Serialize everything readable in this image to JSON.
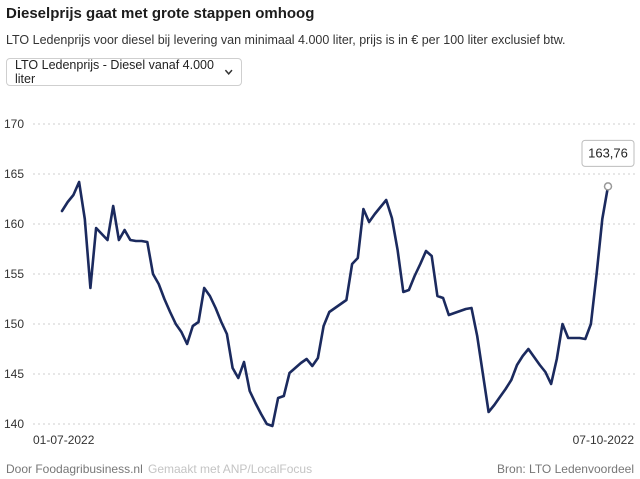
{
  "title": "Dieselprijs gaat met grote stappen omhoog",
  "subtitle": "LTO Ledenprijs voor diesel bij levering van minimaal 4.000 liter, prijs is in € per 100 liter exclusief btw.",
  "dropdown": {
    "selected": "LTO Ledenprijs - Diesel vanaf 4.000 liter",
    "icon": "chevron-down-icon"
  },
  "footer": {
    "left": "Door Foodagribusiness.nl",
    "made": "Gemaakt met ANP/LocalFocus",
    "source": "Bron:  LTO Ledenvoordeel"
  },
  "colors": {
    "line": "#1b2a5e",
    "grid": "#cfcfcf"
  },
  "chart_data": {
    "type": "line",
    "x_start_label": "01-07-2022",
    "x_end_label": "07-10-2022",
    "ylim": [
      140,
      170
    ],
    "yticks": [
      140,
      145,
      150,
      155,
      160,
      165,
      170
    ],
    "grid": "horizontal dotted",
    "callout": {
      "value": 163.76,
      "label": "163,76"
    },
    "values": [
      161.3,
      162.2,
      162.9,
      164.2,
      160.5,
      153.6,
      159.6,
      159.0,
      158.4,
      161.8,
      158.4,
      159.4,
      158.4,
      158.3,
      158.3,
      158.2,
      155.0,
      154.0,
      152.5,
      151.2,
      150.0,
      149.2,
      148.0,
      149.8,
      150.2,
      153.6,
      152.8,
      151.6,
      150.2,
      149.0,
      145.6,
      144.6,
      146.2,
      143.3,
      142.1,
      141.0,
      140.0,
      139.8,
      142.6,
      142.8,
      145.1,
      145.6,
      146.1,
      146.5,
      145.8,
      146.6,
      149.8,
      151.2,
      151.6,
      152.0,
      152.4,
      156.0,
      156.6,
      161.5,
      160.2,
      161.0,
      161.7,
      162.4,
      160.6,
      157.4,
      153.2,
      153.4,
      154.8,
      156.0,
      157.3,
      156.8,
      152.8,
      152.6,
      150.9,
      151.1,
      151.3,
      151.5,
      151.6,
      148.8,
      145.0,
      141.2,
      141.9,
      142.7,
      143.5,
      144.4,
      145.9,
      146.8,
      147.5,
      146.7,
      145.9,
      145.2,
      144.0,
      146.5,
      150.0,
      148.6,
      148.6,
      148.6,
      148.5,
      150.0,
      155.0,
      160.5,
      163.76
    ]
  }
}
